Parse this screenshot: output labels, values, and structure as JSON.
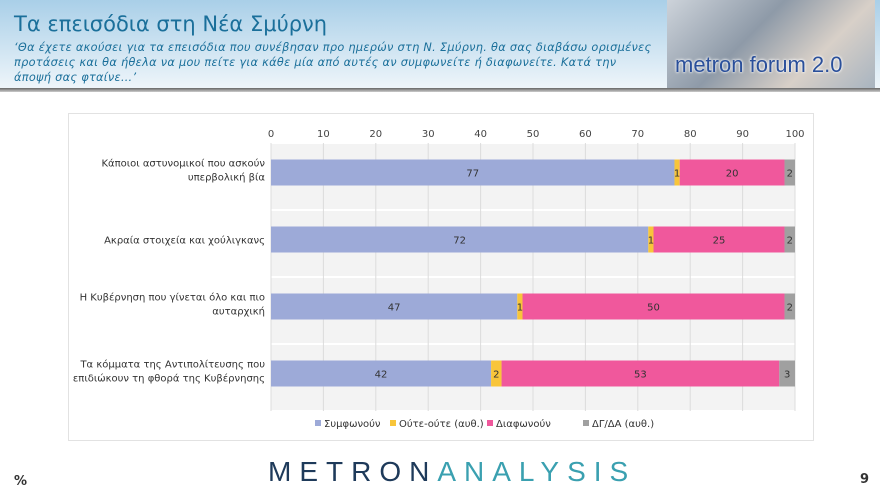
{
  "header": {
    "title": "Τα επεισόδια στη Νέα Σμύρνη",
    "subtitle": "‘Θα έχετε ακούσει για τα επεισόδια που συνέβησαν προ ημερών στη Ν. Σμύρνη. θα σας διαβάσω ορισμένες προτάσεις και θα ήθελα να μου πείτε για κάθε μία από αυτές αν συμφωνείτε ή διαφωνείτε. Κατά την άποψή σας φταίνε…’",
    "badge": "metron forum 2.0"
  },
  "footer": {
    "unit": "%",
    "logo_part1": "METRON",
    "logo_part2": "ANALYSIS",
    "page": "9"
  },
  "chart_data": {
    "type": "bar",
    "orientation": "horizontal",
    "stacked": true,
    "categories": [
      [
        "Κάποιοι αστυνομικοί που ασκούν",
        "υπερβολική βία"
      ],
      [
        "Ακραία στοιχεία και χούλιγκανς"
      ],
      [
        "Η Κυβέρνηση που γίνεται όλο και πιο",
        "αυταρχική"
      ],
      [
        "Τα κόμματα της Αντιπολίτευσης που",
        "επιδιώκουν τη φθορά της Κυβέρνησης"
      ]
    ],
    "series": [
      {
        "name": "Συμφωνούν",
        "color": "#9daad8",
        "values": [
          77,
          72,
          47,
          42
        ]
      },
      {
        "name": "Ούτε-ούτε (αυθ.)",
        "color": "#f8c53a",
        "values": [
          1,
          1,
          1,
          2
        ]
      },
      {
        "name": "Διαφωνούν",
        "color": "#f0589c",
        "values": [
          20,
          25,
          50,
          53
        ]
      },
      {
        "name": "ΔΓ/ΔΑ (αυθ.)",
        "color": "#a0a0a0",
        "values": [
          2,
          2,
          2,
          3
        ]
      }
    ],
    "xlim": [
      0,
      100
    ],
    "xticks": [
      0,
      10,
      20,
      30,
      40,
      50,
      60,
      70,
      80,
      90,
      100
    ],
    "xaxis_position": "top",
    "grid": true,
    "legend": "bottom"
  }
}
